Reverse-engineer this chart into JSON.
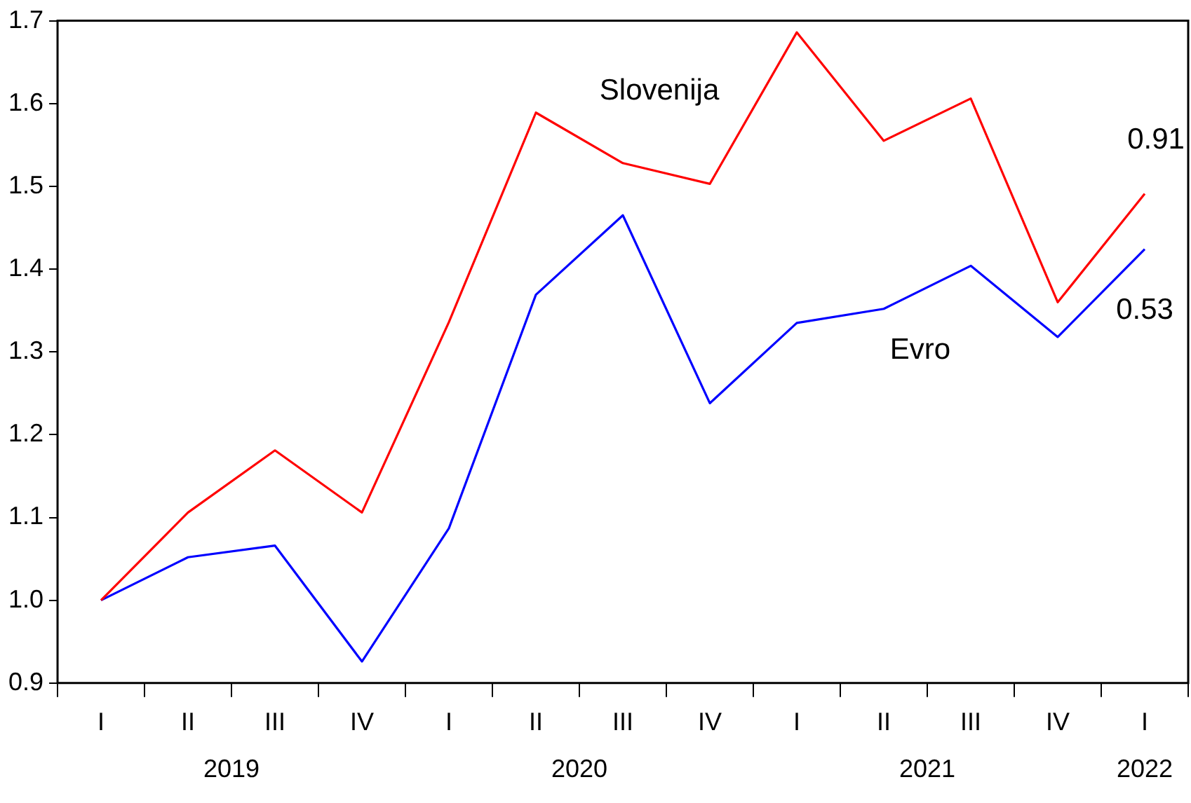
{
  "chart_data": {
    "type": "line",
    "categories": [
      "I",
      "II",
      "III",
      "IV",
      "I",
      "II",
      "III",
      "IV",
      "I",
      "II",
      "III",
      "IV",
      "I"
    ],
    "series": [
      {
        "name": "Slovenija",
        "color": "#ff0000",
        "values": [
          1.0,
          1.106,
          1.181,
          1.106,
          1.336,
          1.589,
          1.528,
          1.503,
          1.686,
          1.555,
          1.606,
          1.36,
          1.491
        ]
      },
      {
        "name": "Evro",
        "color": "#0000ff",
        "values": [
          1.0,
          1.052,
          1.066,
          0.926,
          1.087,
          1.369,
          1.465,
          1.238,
          1.335,
          1.352,
          1.404,
          1.318,
          1.424
        ]
      }
    ],
    "ylim": [
      0.9,
      1.7
    ],
    "yticks": [
      {
        "value": 0.9,
        "label": "0.9"
      },
      {
        "value": 1,
        "label": "1.0"
      },
      {
        "value": 1.1,
        "label": "1.1"
      },
      {
        "value": 1.2,
        "label": "1.2"
      },
      {
        "value": 1.3,
        "label": "1.3"
      },
      {
        "value": 1.4,
        "label": "1.4"
      },
      {
        "value": 1.5,
        "label": "1.5"
      },
      {
        "value": 1.6,
        "label": "1.6"
      },
      {
        "value": 1.7,
        "label": "1.7"
      }
    ],
    "annotations": [
      "0.91",
      "0.53",
      "2019",
      "2020",
      "2021",
      "2022"
    ],
    "grid": false,
    "legend": false,
    "marker": "none",
    "line_style": "solid"
  }
}
